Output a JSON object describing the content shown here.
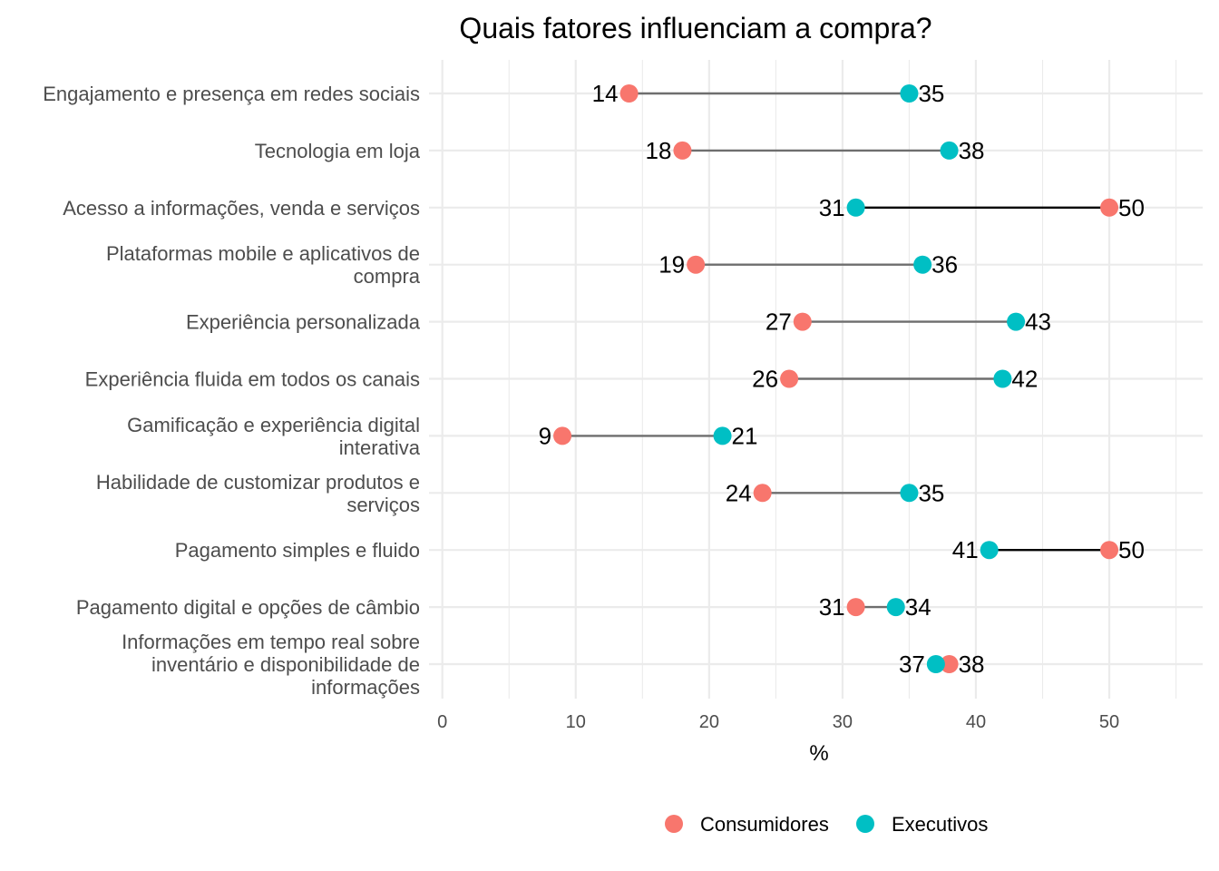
{
  "chart_data": {
    "type": "dumbbell",
    "title": "Quais fatores influenciam a compra?",
    "xlabel": "%",
    "ylabel": "",
    "xlim": [
      -1,
      57
    ],
    "x_ticks": [
      0,
      10,
      20,
      30,
      40,
      50
    ],
    "grid": true,
    "legend_position": "bottom",
    "series": [
      {
        "name": "Consumidores",
        "color": "#F8766D"
      },
      {
        "name": "Executivos",
        "color": "#00BFC4"
      }
    ],
    "items": [
      {
        "label": [
          "Engajamento e presença em redes sociais"
        ],
        "consumidores": 14,
        "executivos": 35
      },
      {
        "label": [
          "Tecnologia em loja"
        ],
        "consumidores": 18,
        "executivos": 38
      },
      {
        "label": [
          "Acesso a informações, venda e serviços"
        ],
        "consumidores": 50,
        "executivos": 31
      },
      {
        "label": [
          "Plataformas mobile e aplicativos de",
          "compra"
        ],
        "consumidores": 19,
        "executivos": 36
      },
      {
        "label": [
          "Experiência personalizada"
        ],
        "consumidores": 27,
        "executivos": 43
      },
      {
        "label": [
          "Experiência fluida em todos os canais"
        ],
        "consumidores": 26,
        "executivos": 42
      },
      {
        "label": [
          "Gamificação e experiência digital",
          "interativa"
        ],
        "consumidores": 9,
        "executivos": 21
      },
      {
        "label": [
          "Habilidade de customizar produtos e",
          "serviços"
        ],
        "consumidores": 24,
        "executivos": 35
      },
      {
        "label": [
          "Pagamento simples e fluido"
        ],
        "consumidores": 50,
        "executivos": 41
      },
      {
        "label": [
          "Pagamento digital e opções de câmbio"
        ],
        "consumidores": 31,
        "executivos": 34
      },
      {
        "label": [
          "Informações em tempo real sobre",
          "inventário e disponibilidade de",
          "informações"
        ],
        "consumidores": 38,
        "executivos": 37
      }
    ],
    "segment_colors": {
      "consumers_higher": "#000000",
      "executives_higher": "#6e6e6e"
    },
    "grid_color": "#ebebeb"
  }
}
